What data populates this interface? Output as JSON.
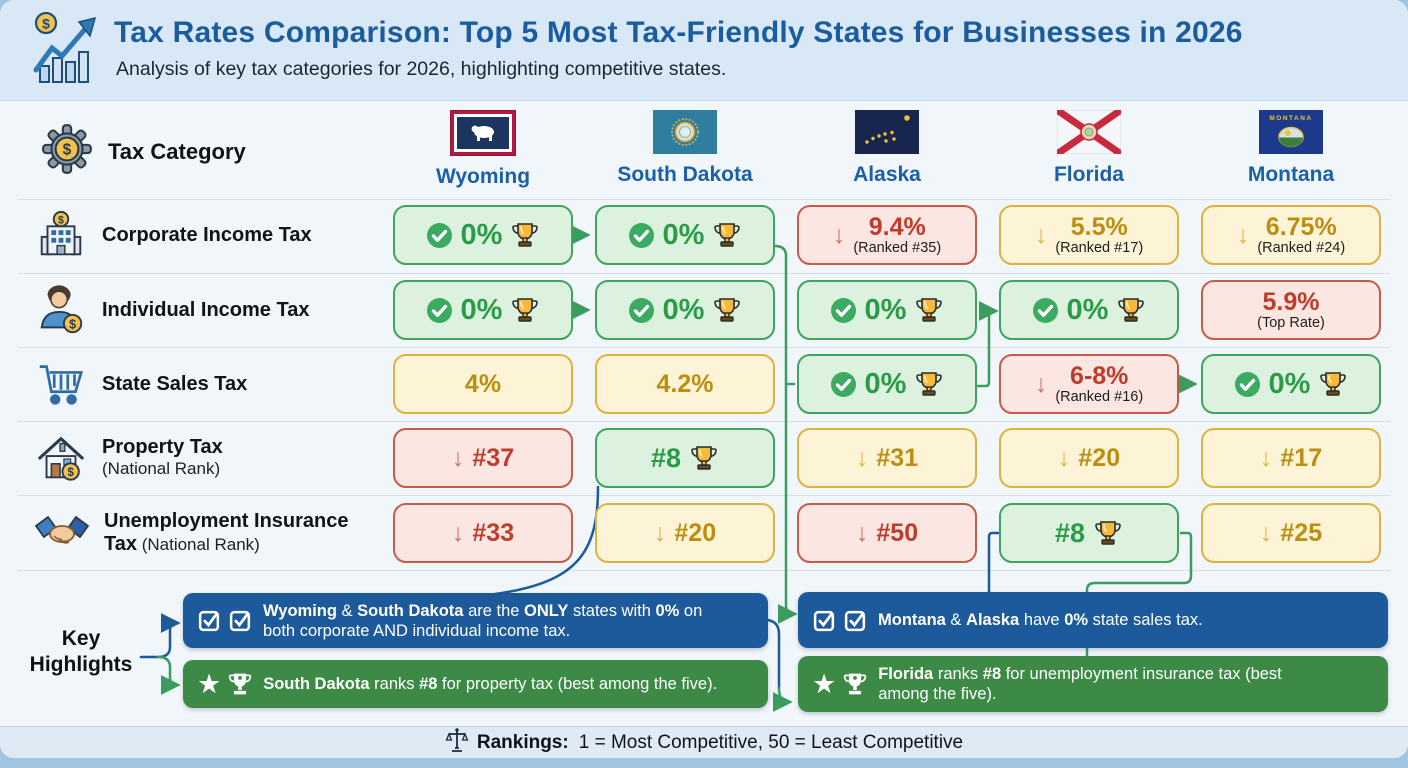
{
  "header": {
    "icon": "growth-chart-dollar-icon",
    "title": "Tax Rates Comparison: Top 5 Most Tax-Friendly States for Businesses in 2026",
    "subtitle": "Analysis of key tax categories for 2026, highlighting competitive states."
  },
  "table": {
    "category_header": {
      "icon": "gear-dollar-icon",
      "label": "Tax Category"
    },
    "states": [
      {
        "name": "Wyoming",
        "flag": "wyoming-flag-icon"
      },
      {
        "name": "South Dakota",
        "flag": "south-dakota-flag-icon"
      },
      {
        "name": "Alaska",
        "flag": "alaska-flag-icon"
      },
      {
        "name": "Florida",
        "flag": "florida-flag-icon"
      },
      {
        "name": "Montana",
        "flag": "montana-flag-icon"
      }
    ],
    "rows": [
      {
        "icon": "building-dollar-icon",
        "label_lines": [
          [
            {
              "t": "Corporate Income Tax",
              "b": true
            }
          ]
        ],
        "cells": [
          {
            "status": "best",
            "check": true,
            "value": "0%",
            "trophy": true
          },
          {
            "status": "best",
            "check": true,
            "value": "0%",
            "trophy": true
          },
          {
            "status": "poor",
            "arrow": true,
            "value": "9.4%",
            "sub": "(Ranked #35)"
          },
          {
            "status": "mid",
            "arrow": true,
            "value": "5.5%",
            "sub": "(Ranked #17)"
          },
          {
            "status": "mid",
            "arrow": true,
            "value": "6.75%",
            "sub": "(Ranked #24)"
          }
        ]
      },
      {
        "icon": "person-dollar-icon",
        "label_lines": [
          [
            {
              "t": "Individual Income Tax",
              "b": true
            }
          ]
        ],
        "cells": [
          {
            "status": "best",
            "check": true,
            "value": "0%",
            "trophy": true
          },
          {
            "status": "best",
            "check": true,
            "value": "0%",
            "trophy": true
          },
          {
            "status": "best",
            "check": true,
            "value": "0%",
            "trophy": true
          },
          {
            "status": "best",
            "check": true,
            "value": "0%",
            "trophy": true
          },
          {
            "status": "poor",
            "value": "5.9%",
            "sub": "(Top Rate)"
          }
        ]
      },
      {
        "icon": "shopping-cart-icon",
        "label_lines": [
          [
            {
              "t": "State Sales Tax",
              "b": true
            }
          ]
        ],
        "cells": [
          {
            "status": "mid",
            "value": "4%"
          },
          {
            "status": "mid",
            "value": "4.2%"
          },
          {
            "status": "best",
            "check": true,
            "value": "0%",
            "trophy": true
          },
          {
            "status": "poor",
            "arrow": true,
            "value": "6-8%",
            "sub": "(Ranked #16)"
          },
          {
            "status": "best",
            "check": true,
            "value": "0%",
            "trophy": true
          }
        ]
      },
      {
        "icon": "house-dollar-icon",
        "label_lines": [
          [
            {
              "t": "Property Tax",
              "b": true
            }
          ],
          [
            {
              "t": "(National Rank)",
              "b": false
            }
          ]
        ],
        "cells": [
          {
            "status": "poor",
            "arrow": true,
            "value": "#37"
          },
          {
            "status": "best",
            "value": "#8",
            "trophy": true
          },
          {
            "status": "mid",
            "arrow": true,
            "value": "#31"
          },
          {
            "status": "mid",
            "arrow": true,
            "value": "#20"
          },
          {
            "status": "mid",
            "arrow": true,
            "value": "#17"
          }
        ]
      },
      {
        "icon": "handshake-icon",
        "label_lines": [
          [
            {
              "t": "Unemployment Insurance",
              "b": true
            }
          ],
          [
            {
              "t": "Tax",
              "b": true
            },
            {
              "t": " (National Rank)",
              "b": false
            }
          ]
        ],
        "cells": [
          {
            "status": "poor",
            "arrow": true,
            "value": "#33"
          },
          {
            "status": "mid",
            "arrow": true,
            "value": "#20"
          },
          {
            "status": "poor",
            "arrow": true,
            "value": "#50"
          },
          {
            "status": "best",
            "value": "#8",
            "trophy": true
          },
          {
            "status": "mid",
            "arrow": true,
            "value": "#25"
          }
        ]
      }
    ]
  },
  "highlights": {
    "label_line1": "Key",
    "label_line2": "Highlights",
    "boxes": [
      {
        "color": "blue",
        "icon": "double-checkbox-icon",
        "lines": [
          [
            {
              "t": "Wyoming",
              "b": true
            },
            {
              "t": " & ",
              "b": false
            },
            {
              "t": "South Dakota",
              "b": true
            },
            {
              "t": " are the ",
              "b": false
            },
            {
              "t": "ONLY",
              "b": true
            },
            {
              "t": " states with ",
              "b": false
            },
            {
              "t": "0%",
              "b": true
            },
            {
              "t": " on",
              "b": false
            }
          ],
          [
            {
              "t": "both corporate AND individual income tax.",
              "b": false
            }
          ]
        ]
      },
      {
        "color": "green",
        "icon": "star-trophy-icon",
        "lines": [
          [
            {
              "t": "South Dakota",
              "b": true
            },
            {
              "t": " ranks ",
              "b": false
            },
            {
              "t": "#8",
              "b": true
            },
            {
              "t": " for property tax (best among the five).",
              "b": false
            }
          ]
        ]
      },
      {
        "color": "blue",
        "icon": "double-checkbox-icon",
        "lines": [
          [
            {
              "t": "Montana",
              "b": true
            },
            {
              "t": " & ",
              "b": false
            },
            {
              "t": "Alaska",
              "b": true
            },
            {
              "t": " have ",
              "b": false
            },
            {
              "t": "0%",
              "b": true
            },
            {
              "t": " state sales tax.",
              "b": false
            }
          ]
        ]
      },
      {
        "color": "green",
        "icon": "star-trophy-icon",
        "lines": [
          [
            {
              "t": "Florida",
              "b": true
            },
            {
              "t": " ranks ",
              "b": false
            },
            {
              "t": "#8",
              "b": true
            },
            {
              "t": " for unemployment insurance tax (best",
              "b": false
            }
          ],
          [
            {
              "t": "among the five).",
              "b": false
            }
          ]
        ]
      }
    ]
  },
  "footer": {
    "icon": "scales-icon",
    "label_bold": "Rankings:",
    "label_rest": "1 = Most Competitive, 50 = Least Competitive"
  },
  "colors": {
    "title_blue": "#1b5c9e",
    "state_blue": "#1b5fa8",
    "best_green": "#2a9b47",
    "best_bg": "#dcf2df",
    "best_border": "#3fa45c",
    "poor_red": "#c23a2a",
    "poor_bg": "#fbe6e2",
    "poor_border": "#c65c48",
    "mid_gold": "#bd8e0e",
    "mid_bg": "#fdf3d6",
    "mid_border": "#ddb23f",
    "box_blue": "#1d5a9c",
    "box_green": "#3d8a47",
    "header_band": "#d9e8f6",
    "footer_band": "#dfeaf5"
  },
  "chart_data": {
    "type": "table",
    "title": "Tax Rates Comparison: Top 5 Most Tax-Friendly States for Businesses in 2026",
    "columns": [
      "Tax Category",
      "Wyoming",
      "South Dakota",
      "Alaska",
      "Florida",
      "Montana"
    ],
    "rows": [
      [
        "Corporate Income Tax",
        "0%",
        "0%",
        "9.4% (Ranked #35)",
        "5.5% (Ranked #17)",
        "6.75% (Ranked #24)"
      ],
      [
        "Individual Income Tax",
        "0%",
        "0%",
        "0%",
        "0%",
        "5.9% (Top Rate)"
      ],
      [
        "State Sales Tax",
        "4%",
        "4.2%",
        "0%",
        "6-8% (Ranked #16)",
        "0%"
      ],
      [
        "Property Tax (National Rank)",
        "#37",
        "#8",
        "#31",
        "#20",
        "#17"
      ],
      [
        "Unemployment Insurance Tax (National Rank)",
        "#33",
        "#20",
        "#50",
        "#8",
        "#25"
      ]
    ],
    "legend": "Rankings: 1 = Most Competitive, 50 = Least Competitive"
  }
}
